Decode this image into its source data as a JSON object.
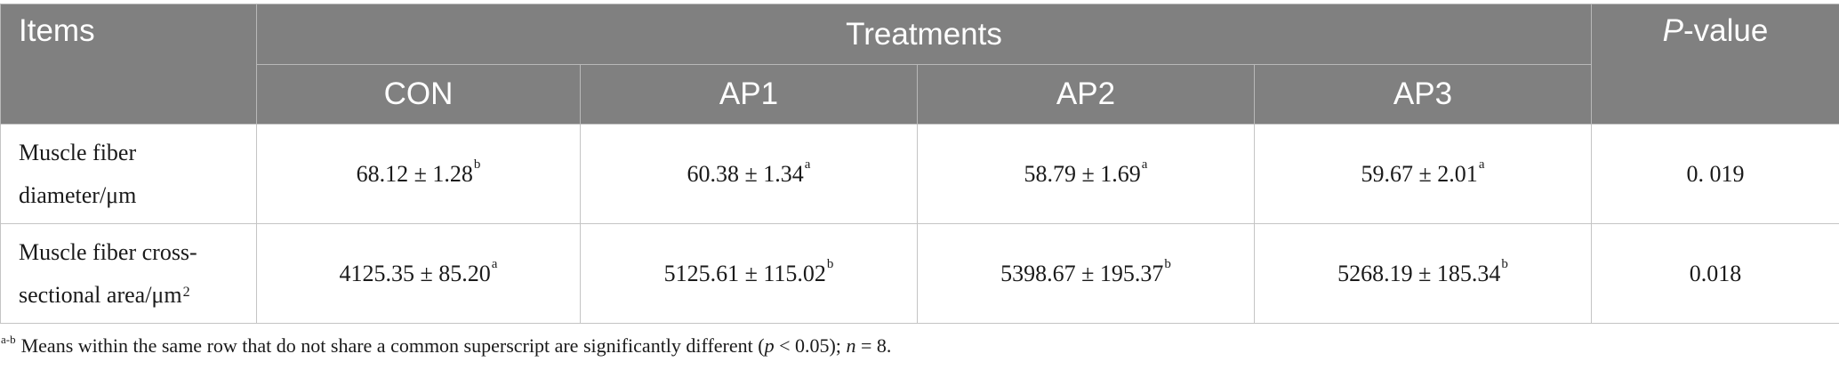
{
  "table": {
    "header": {
      "items": "Items",
      "treatments": "Treatments",
      "pvalue_italic": "P",
      "pvalue_rest": "-value",
      "groups": [
        "CON",
        "AP1",
        "AP2",
        "AP3"
      ]
    },
    "rows": [
      {
        "label_line1": "Muscle fiber",
        "label_line2": "diameter/μm",
        "label_sup": "",
        "cells": [
          {
            "value": "68.12 ± 1.28",
            "sup": "b"
          },
          {
            "value": "60.38 ± 1.34",
            "sup": "a"
          },
          {
            "value": "58.79 ± 1.69",
            "sup": "a"
          },
          {
            "value": "59.67 ± 2.01",
            "sup": "a"
          }
        ],
        "pvalue": "0. 019"
      },
      {
        "label_line1": "Muscle fiber cross-",
        "label_line2": "sectional area/μm",
        "label_sup": "2",
        "cells": [
          {
            "value": "4125.35 ± 85.20",
            "sup": "a"
          },
          {
            "value": "5125.61 ± 115.02",
            "sup": "b"
          },
          {
            "value": "5398.67 ± 195.37",
            "sup": "b"
          },
          {
            "value": "5268.19 ± 185.34",
            "sup": "b"
          }
        ],
        "pvalue": "0.018"
      }
    ]
  },
  "footnote": {
    "sup": "a-b",
    "text1": "Means within the same row that do not share a common superscript are significantly different (",
    "p_italic": "p",
    "text2": " < 0.05); ",
    "n_italic": "n",
    "text3": " = 8."
  }
}
